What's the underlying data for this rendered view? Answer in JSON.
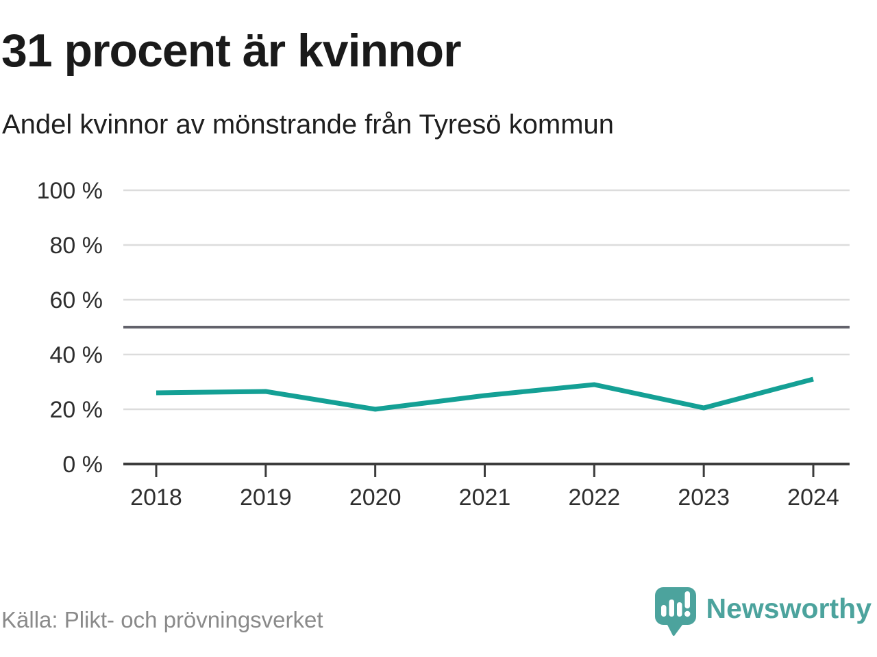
{
  "header": {
    "title": "31 procent är kvinnor",
    "subtitle": "Andel kvinnor av mönstrande från Tyresö kommun"
  },
  "chart_data": {
    "type": "line",
    "title": "31 procent är kvinnor",
    "subtitle": "Andel kvinnor av mönstrande från Tyresö kommun",
    "x": [
      2018,
      2019,
      2020,
      2021,
      2022,
      2023,
      2024
    ],
    "series": [
      {
        "name": "Andel kvinnor av mönstrande",
        "color": "#14a095",
        "values": [
          26,
          26.5,
          20,
          25,
          29,
          20.5,
          31
        ]
      }
    ],
    "ylim": [
      0,
      100
    ],
    "yticks": [
      0,
      20,
      40,
      60,
      80,
      100
    ],
    "ytick_label_suffix": " %",
    "reference_line": 50,
    "grid": "horizontal",
    "legend": "none"
  },
  "footer": {
    "source": "Källa: Plikt- och prövningsverket",
    "brand": "Newsworthy"
  },
  "colors": {
    "line": "#14a095",
    "grid": "#dcdcdc",
    "reference": "#62626b",
    "axis": "#3c3c3c",
    "tick_label": "#2e2e2e",
    "title": "#1a1a1a",
    "source": "#8a8a8a",
    "brand": "#4ca39d",
    "background": "#ffffff"
  }
}
